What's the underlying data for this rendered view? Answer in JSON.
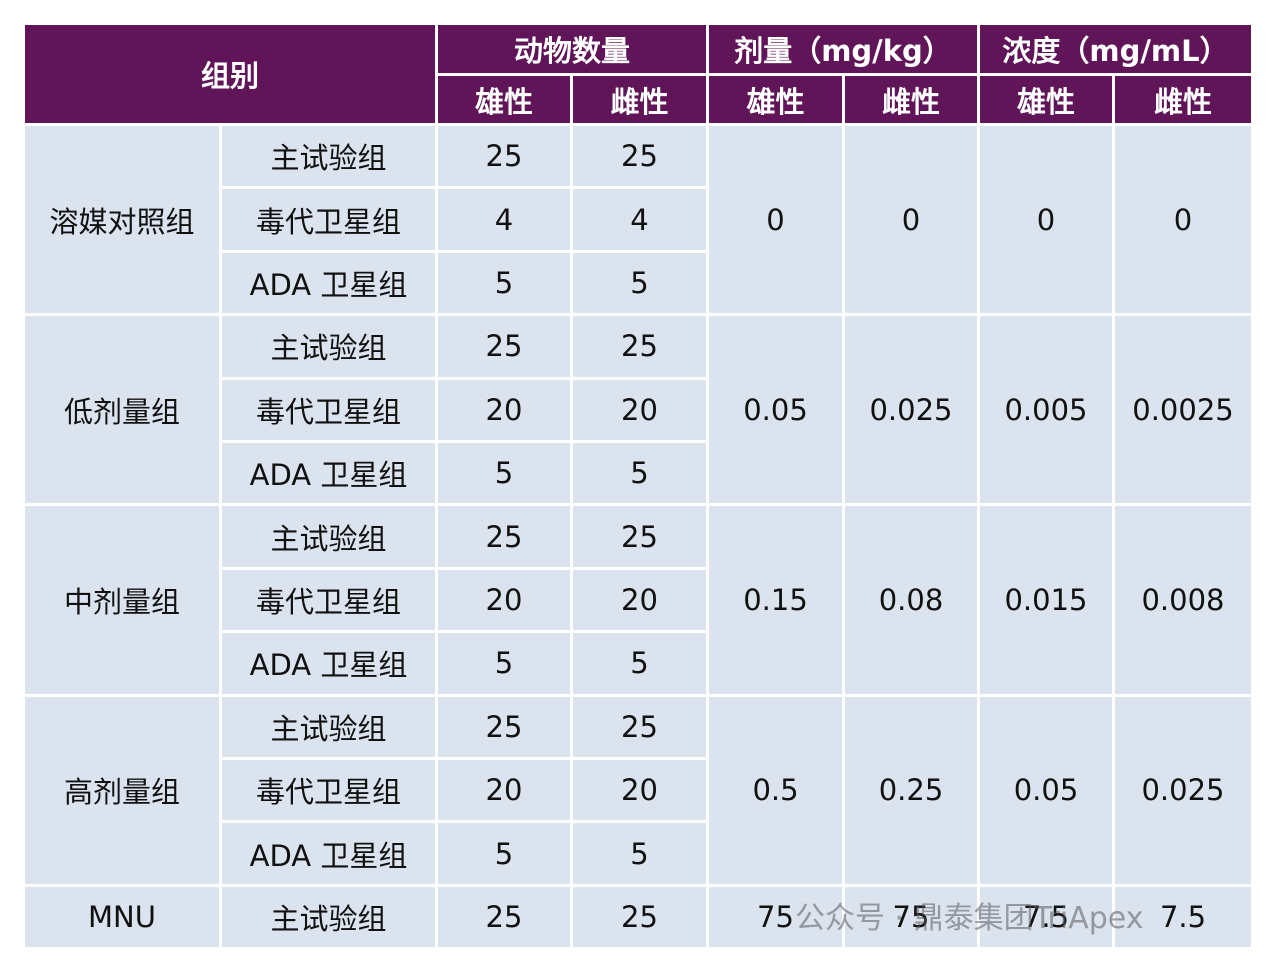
{
  "header": {
    "group": "组别",
    "animal_count": "动物数量",
    "dose": "剂量（mg/kg）",
    "concentration": "浓度（mg/mL）",
    "sub": [
      "雄性",
      "雌性",
      "雄性",
      "雌性",
      "雄性",
      "雌性"
    ]
  },
  "groups": [
    {
      "name": "溶媒对照组",
      "subgroups": [
        {
          "name": "主试验组",
          "male": 25,
          "female": 25
        },
        {
          "name": "毒代卫星组",
          "male": 4,
          "female": 4
        },
        {
          "name": "ADA 卫星组",
          "male": 5,
          "female": 5
        }
      ],
      "dose_male": 0,
      "dose_female": 0,
      "conc_male": 0,
      "conc_female": 0
    },
    {
      "name": "低剂量组",
      "subgroups": [
        {
          "name": "主试验组",
          "male": 25,
          "female": 25
        },
        {
          "name": "毒代卫星组",
          "male": 20,
          "female": 20
        },
        {
          "name": "ADA 卫星组",
          "male": 5,
          "female": 5
        }
      ],
      "dose_male": 0.05,
      "dose_female": 0.025,
      "conc_male": 0.005,
      "conc_female": 0.0025
    },
    {
      "name": "中剂量组",
      "subgroups": [
        {
          "name": "主试验组",
          "male": 25,
          "female": 25
        },
        {
          "name": "毒代卫星组",
          "male": 20,
          "female": 20
        },
        {
          "name": "ADA 卫星组",
          "male": 5,
          "female": 5
        }
      ],
      "dose_male": 0.15,
      "dose_female": 0.08,
      "conc_male": 0.015,
      "conc_female": 0.008
    },
    {
      "name": "高剂量组",
      "subgroups": [
        {
          "name": "主试验组",
          "male": 25,
          "female": 25
        },
        {
          "name": "毒代卫星组",
          "male": 20,
          "female": 20
        },
        {
          "name": "ADA 卫星组",
          "male": 5,
          "female": 5
        }
      ],
      "dose_male": 0.5,
      "dose_female": 0.25,
      "conc_male": 0.05,
      "conc_female": 0.025
    },
    {
      "name": "MNU",
      "subgroups": [
        {
          "name": "主试验组",
          "male": 25,
          "female": 25
        }
      ],
      "dose_male": 75,
      "dose_female": 75,
      "conc_male": 7.5,
      "conc_female": 7.5
    }
  ],
  "watermark": "公众号 · 鼎泰集团TriApex"
}
